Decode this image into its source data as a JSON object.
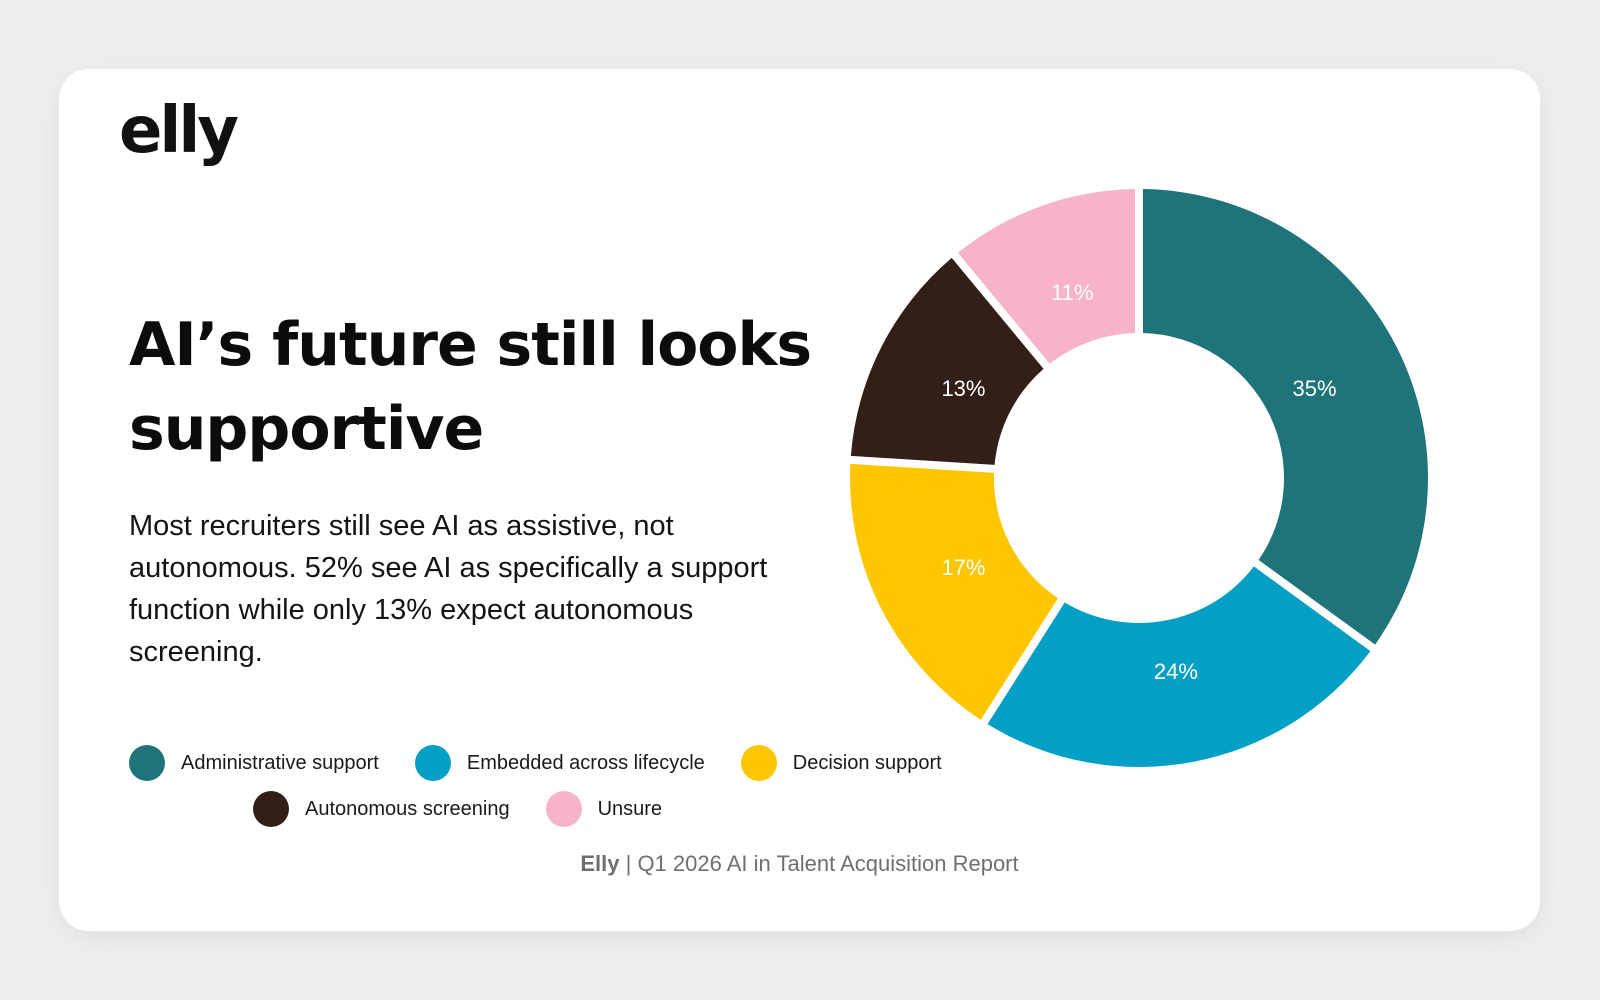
{
  "logo": {
    "text": "elly"
  },
  "title": "AI’s future still looks supportive",
  "description": "Most recruiters still see AI as assistive, not autonomous. 52% see AI as specifically a support function while only 13% expect autonomous screening.",
  "footer": {
    "brand": "Elly",
    "text": " | Q1 2026 AI in Talent Acquisition Report"
  },
  "colors": {
    "background": "#efeef0",
    "card": "#ffffff"
  },
  "chart_data": {
    "type": "pie",
    "style": "donut",
    "title": "",
    "legend_position": "bottom-left",
    "categories": [
      "Administrative support",
      "Embedded across lifecycle",
      "Decision support",
      "Autonomous screening",
      "Unsure"
    ],
    "values": [
      35,
      24,
      17,
      13,
      11
    ],
    "data_labels": [
      "35%",
      "24%",
      "17%",
      "13%",
      "11%"
    ],
    "colors": [
      "#1f7479",
      "#039fc4",
      "#fec600",
      "#321f17",
      "#f7b4c8"
    ],
    "legend_rows": [
      [
        0,
        1,
        2
      ],
      [
        3,
        4
      ]
    ]
  }
}
